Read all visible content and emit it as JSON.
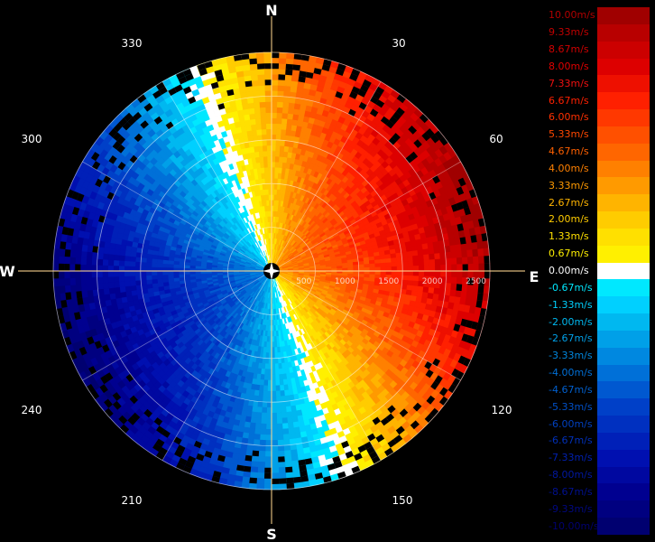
{
  "compass": {
    "north": "N",
    "east": "E",
    "south": "S",
    "west": "W"
  },
  "azimuth_labels": [
    "30",
    "60",
    "120",
    "150",
    "210",
    "240",
    "300",
    "330"
  ],
  "range_labels": [
    "500",
    "1000",
    "1500",
    "2000",
    "2500"
  ],
  "velocity_scale": [
    {
      "label": "10.00m/s",
      "color": "#a00000",
      "text_color": "#b00000"
    },
    {
      "label": "9.33m/s",
      "color": "#b80000",
      "text_color": "#c00000"
    },
    {
      "label": "8.67m/s",
      "color": "#cc0000",
      "text_color": "#d00000"
    },
    {
      "label": "8.00m/s",
      "color": "#dd0000",
      "text_color": "#e00000"
    },
    {
      "label": "7.33m/s",
      "color": "#ee1000",
      "text_color": "#f01010"
    },
    {
      "label": "6.67m/s",
      "color": "#ff2000",
      "text_color": "#ff2000"
    },
    {
      "label": "6.00m/s",
      "color": "#ff3800",
      "text_color": "#ff3000"
    },
    {
      "label": "5.33m/s",
      "color": "#ff5000",
      "text_color": "#ff4800"
    },
    {
      "label": "4.67m/s",
      "color": "#ff6600",
      "text_color": "#ff6000"
    },
    {
      "label": "4.00m/s",
      "color": "#ff8000",
      "text_color": "#ff8000"
    },
    {
      "label": "3.33m/s",
      "color": "#ff9a00",
      "text_color": "#ff9a00"
    },
    {
      "label": "2.67m/s",
      "color": "#ffb400",
      "text_color": "#ffb400"
    },
    {
      "label": "2.00m/s",
      "color": "#ffcc00",
      "text_color": "#ffcc00"
    },
    {
      "label": "1.33m/s",
      "color": "#ffe000",
      "text_color": "#ffe000"
    },
    {
      "label": "0.67m/s",
      "color": "#fff000",
      "text_color": "#fff000"
    },
    {
      "label": "0.00m/s",
      "color": "#ffffff",
      "text_color": "#ffffff"
    },
    {
      "label": "-0.67m/s",
      "color": "#00e8ff",
      "text_color": "#00e8ff"
    },
    {
      "label": "-1.33m/s",
      "color": "#00d0ff",
      "text_color": "#00d0ff"
    },
    {
      "label": "-2.00m/s",
      "color": "#00b8f0",
      "text_color": "#00b8f0"
    },
    {
      "label": "-2.67m/s",
      "color": "#00a0e8",
      "text_color": "#00a0e8"
    },
    {
      "label": "-3.33m/s",
      "color": "#0088e0",
      "text_color": "#0088e0"
    },
    {
      "label": "-4.00m/s",
      "color": "#0070d8",
      "text_color": "#0070d8"
    },
    {
      "label": "-4.67m/s",
      "color": "#0058d0",
      "text_color": "#0060d0"
    },
    {
      "label": "-5.33m/s",
      "color": "#0040c8",
      "text_color": "#0050c8"
    },
    {
      "label": "-6.00m/s",
      "color": "#0030c0",
      "text_color": "#0040c0"
    },
    {
      "label": "-6.67m/s",
      "color": "#0020b8",
      "text_color": "#0030b8"
    },
    {
      "label": "-7.33m/s",
      "color": "#0010b0",
      "text_color": "#0020b0"
    },
    {
      "label": "-8.00m/s",
      "color": "#0008a0",
      "text_color": "#0018a0"
    },
    {
      "label": "-8.67m/s",
      "color": "#000090",
      "text_color": "#001090"
    },
    {
      "label": "-9.33m/s",
      "color": "#000080",
      "text_color": "#000880"
    },
    {
      "label": "-10.00m/s",
      "color": "#000070",
      "text_color": "#000070"
    }
  ]
}
